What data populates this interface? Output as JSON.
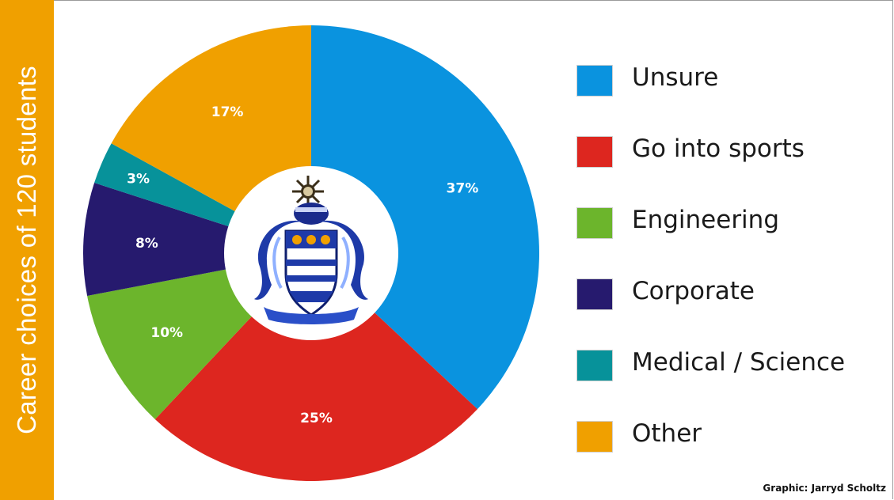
{
  "credit": "Graphic: Jarryd Scholtz",
  "logo": "school-crest",
  "chart_data": {
    "type": "pie",
    "title": "Career choices of 120 students",
    "hole": "donut-with-crest",
    "categories": [
      "Unsure",
      "Go into sports",
      "Engineering",
      "Corporate",
      "Medical / Science",
      "Other"
    ],
    "values": [
      37,
      25,
      10,
      8,
      3,
      17
    ],
    "labels": [
      "37%",
      "25%",
      "10%",
      "8%",
      "3%",
      "17%"
    ],
    "colors": [
      "#0a93df",
      "#dd261f",
      "#6cb52c",
      "#261a6e",
      "#07929a",
      "#f0a000"
    ],
    "legend": "right"
  }
}
